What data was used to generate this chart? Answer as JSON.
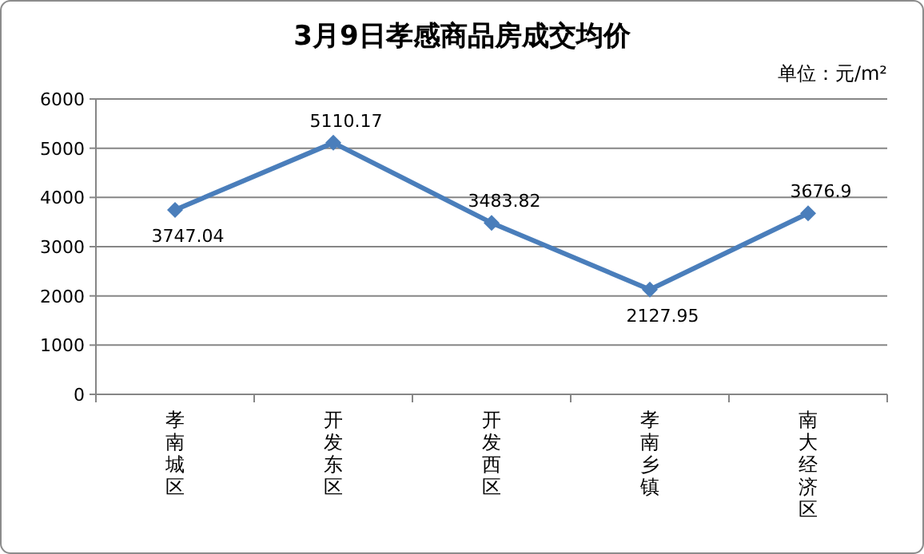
{
  "chart_data": {
    "type": "line",
    "title": "3月9日孝感商品房成交均价",
    "annotations": [
      "单位：元/m²"
    ],
    "categories": [
      "孝南城区",
      "开发东区",
      "开发西区",
      "孝南乡镇",
      "南大经济区"
    ],
    "series": [
      {
        "color": "#4a7ebb",
        "values": [
          3747.04,
          5110.17,
          3483.82,
          2127.95,
          3676.9
        ]
      }
    ],
    "ylim": [
      0,
      6000
    ],
    "yticks": [
      0,
      1000,
      2000,
      3000,
      4000,
      5000,
      6000
    ],
    "grid": "y",
    "marker": "diamond",
    "line_style": "solid",
    "data_labels": true
  }
}
